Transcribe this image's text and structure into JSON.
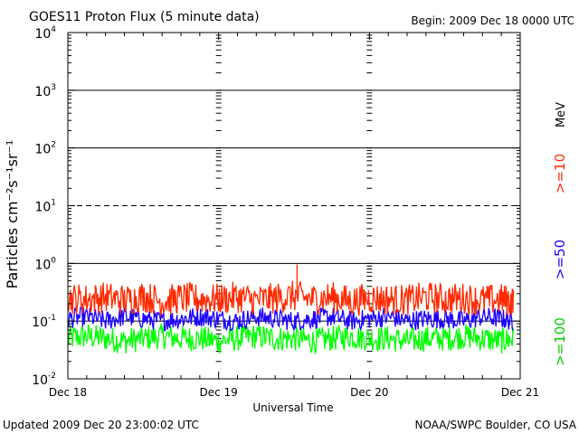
{
  "title": "GOES11 Proton Flux (5 minute data)",
  "begin": "Begin: 2009 Dec 18 0000 UTC",
  "updated": "Updated 2009 Dec 20 23:00:02 UTC",
  "credit": "NOAA/SWPC Boulder, CO USA",
  "units_label": "MeV",
  "colors": {
    "ge10": "#ff2a00",
    "ge50": "#1a00ff",
    "ge100": "#00ff00",
    "axis": "#000000"
  },
  "chart_data": {
    "type": "line",
    "title": "GOES11 Proton Flux (5 minute data)",
    "xlabel": "Universal Time",
    "ylabel": "Particles cm⁻²s⁻¹sr⁻¹",
    "yscale": "log",
    "ylim": [
      0.01,
      10000
    ],
    "xlim": [
      "2009-12-18 00:00",
      "2009-12-21 00:00"
    ],
    "x_ticks": [
      "Dec 18",
      "Dec 19",
      "Dec 20",
      "Dec 21"
    ],
    "y_ticks": [
      {
        "base": "10",
        "exp": "-2"
      },
      {
        "base": "10",
        "exp": "-1"
      },
      {
        "base": "10",
        "exp": "0"
      },
      {
        "base": "10",
        "exp": "1"
      },
      {
        "base": "10",
        "exp": "2"
      },
      {
        "base": "10",
        "exp": "3"
      },
      {
        "base": "10",
        "exp": "4"
      }
    ],
    "grid": true,
    "legend_position": "right",
    "x": [
      "2009-12-18 00:00",
      "2009-12-18 03:00",
      "2009-12-18 06:00",
      "2009-12-18 09:00",
      "2009-12-18 12:00",
      "2009-12-18 15:00",
      "2009-12-18 18:00",
      "2009-12-18 21:00",
      "2009-12-19 00:00",
      "2009-12-19 03:00",
      "2009-12-19 06:00",
      "2009-12-19 09:00",
      "2009-12-19 12:00",
      "2009-12-19 15:00",
      "2009-12-19 18:00",
      "2009-12-19 21:00",
      "2009-12-20 00:00",
      "2009-12-20 03:00",
      "2009-12-20 06:00",
      "2009-12-20 09:00",
      "2009-12-20 12:00",
      "2009-12-20 15:00",
      "2009-12-20 18:00",
      "2009-12-20 21:00",
      "2009-12-20 23:00"
    ],
    "series": [
      {
        "name": ">=10",
        "values": [
          0.25,
          0.24,
          0.26,
          0.23,
          0.27,
          0.22,
          0.25,
          0.24,
          0.24,
          0.26,
          0.23,
          0.25,
          0.27,
          0.24,
          0.26,
          0.22,
          0.25,
          0.24,
          0.23,
          0.26,
          0.24,
          0.25,
          0.23,
          0.24,
          0.22
        ]
      },
      {
        "name": ">=50",
        "values": [
          0.11,
          0.12,
          0.1,
          0.12,
          0.11,
          0.1,
          0.11,
          0.12,
          0.11,
          0.1,
          0.12,
          0.11,
          0.1,
          0.11,
          0.12,
          0.1,
          0.11,
          0.12,
          0.1,
          0.11,
          0.11,
          0.1,
          0.12,
          0.11,
          0.1
        ]
      },
      {
        "name": ">=100",
        "values": [
          0.05,
          0.055,
          0.05,
          0.045,
          0.05,
          0.055,
          0.05,
          0.05,
          0.045,
          0.05,
          0.055,
          0.05,
          0.05,
          0.045,
          0.05,
          0.055,
          0.05,
          0.05,
          0.045,
          0.05,
          0.05,
          0.055,
          0.05,
          0.045,
          0.05
        ]
      }
    ]
  }
}
